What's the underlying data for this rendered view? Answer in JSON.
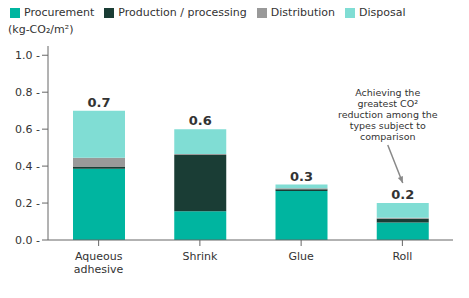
{
  "chart_data": {
    "type": "bar",
    "stacked": true,
    "categories": [
      "Aqueous\nadhesive",
      "Shrink",
      "Glue",
      "Roll"
    ],
    "series": [
      {
        "name": "Procurement",
        "color": "#00b5a0",
        "values": [
          0.385,
          0.155,
          0.265,
          0.095
        ]
      },
      {
        "name": "Production / processing",
        "color": "#1a3d35",
        "values": [
          0.01,
          0.305,
          0.01,
          0.02
        ]
      },
      {
        "name": "Distribution",
        "color": "#999999",
        "values": [
          0.05,
          0.005,
          0.005,
          0.005
        ]
      },
      {
        "name": "Disposal",
        "color": "#80ddd4",
        "values": [
          0.255,
          0.135,
          0.02,
          0.08
        ]
      }
    ],
    "totals": [
      0.7,
      0.6,
      0.3,
      0.2
    ],
    "ylabel": "(kg-CO₂/m²)",
    "ylim": [
      0,
      1.05
    ],
    "yticks": [
      {
        "value": 0.0,
        "label": "0.0 -"
      },
      {
        "value": 0.2,
        "label": "0.2 -"
      },
      {
        "value": 0.4,
        "label": "0.4 -"
      },
      {
        "value": 0.6,
        "label": "0.6 -"
      },
      {
        "value": 0.8,
        "label": "0.8 -"
      },
      {
        "value": 1.0,
        "label": "1.0 -"
      }
    ],
    "annotation": {
      "text": "Achieving the\ngreatest CO²\nreduction among the\ntypes subject to\ncomparison",
      "x": "Roll"
    },
    "grid": false,
    "legend": "upper left"
  }
}
